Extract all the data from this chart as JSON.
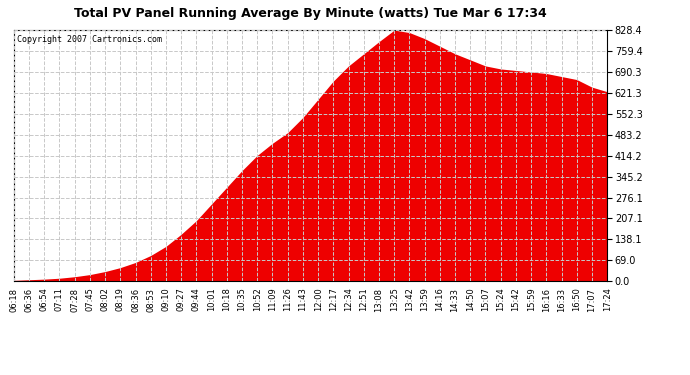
{
  "title": "Total PV Panel Running Average By Minute (watts) Tue Mar 6 17:34",
  "copyright": "Copyright 2007 Cartronics.com",
  "fill_color": "#EE0000",
  "line_color": "#EE0000",
  "bg_color": "#ffffff",
  "grid_color": "#c8c8c8",
  "yticks": [
    0.0,
    69.0,
    138.1,
    207.1,
    276.1,
    345.2,
    414.2,
    483.2,
    552.3,
    621.3,
    690.3,
    759.4,
    828.4
  ],
  "ymax": 828.4,
  "ymin": 0.0,
  "xtick_labels": [
    "06:18",
    "06:36",
    "06:54",
    "07:11",
    "07:28",
    "07:45",
    "08:02",
    "08:19",
    "08:36",
    "08:53",
    "09:10",
    "09:27",
    "09:44",
    "10:01",
    "10:18",
    "10:35",
    "10:52",
    "11:09",
    "11:26",
    "11:43",
    "12:00",
    "12:17",
    "12:34",
    "12:51",
    "13:08",
    "13:25",
    "13:42",
    "13:59",
    "14:16",
    "14:33",
    "14:50",
    "15:07",
    "15:24",
    "15:42",
    "15:59",
    "16:16",
    "16:33",
    "16:50",
    "17:07",
    "17:24"
  ],
  "y_values": [
    3,
    5,
    7,
    10,
    15,
    22,
    32,
    45,
    62,
    85,
    115,
    155,
    200,
    255,
    310,
    365,
    415,
    455,
    490,
    540,
    600,
    660,
    710,
    750,
    790,
    828,
    820,
    800,
    775,
    750,
    730,
    710,
    700,
    695,
    690,
    685,
    675,
    665,
    640,
    625
  ]
}
